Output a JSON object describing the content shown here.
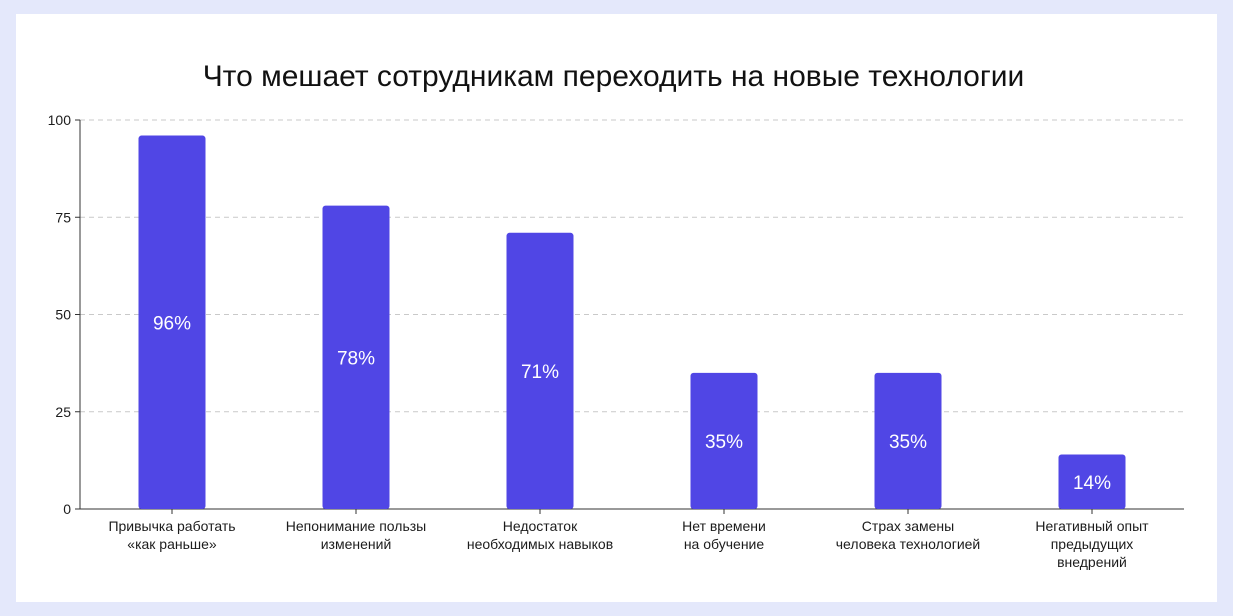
{
  "chart_data": {
    "type": "bar",
    "title": "Что мешает сотрудникам переходить на новые технологии",
    "xlabel": "",
    "ylabel": "",
    "ylim": [
      0,
      100
    ],
    "yticks": [
      "0",
      "25",
      "50",
      "75",
      "100"
    ],
    "grid": true,
    "legend": "none",
    "bar_color": "#5046e5",
    "categories": [
      [
        "Привычка работать",
        "«как раньше»"
      ],
      [
        "Непонимание пользы",
        "изменений"
      ],
      [
        "Недостаток",
        "необходимых навыков"
      ],
      [
        "Нет времени",
        "на обучение"
      ],
      [
        "Страх замены",
        "человека технологией"
      ],
      [
        "Негативный опыт",
        "предыдущих",
        "внедрений"
      ]
    ],
    "values": [
      96,
      78,
      71,
      35,
      35,
      14
    ],
    "value_labels": [
      "96%",
      "78%",
      "71%",
      "35%",
      "35%",
      "14%"
    ]
  }
}
